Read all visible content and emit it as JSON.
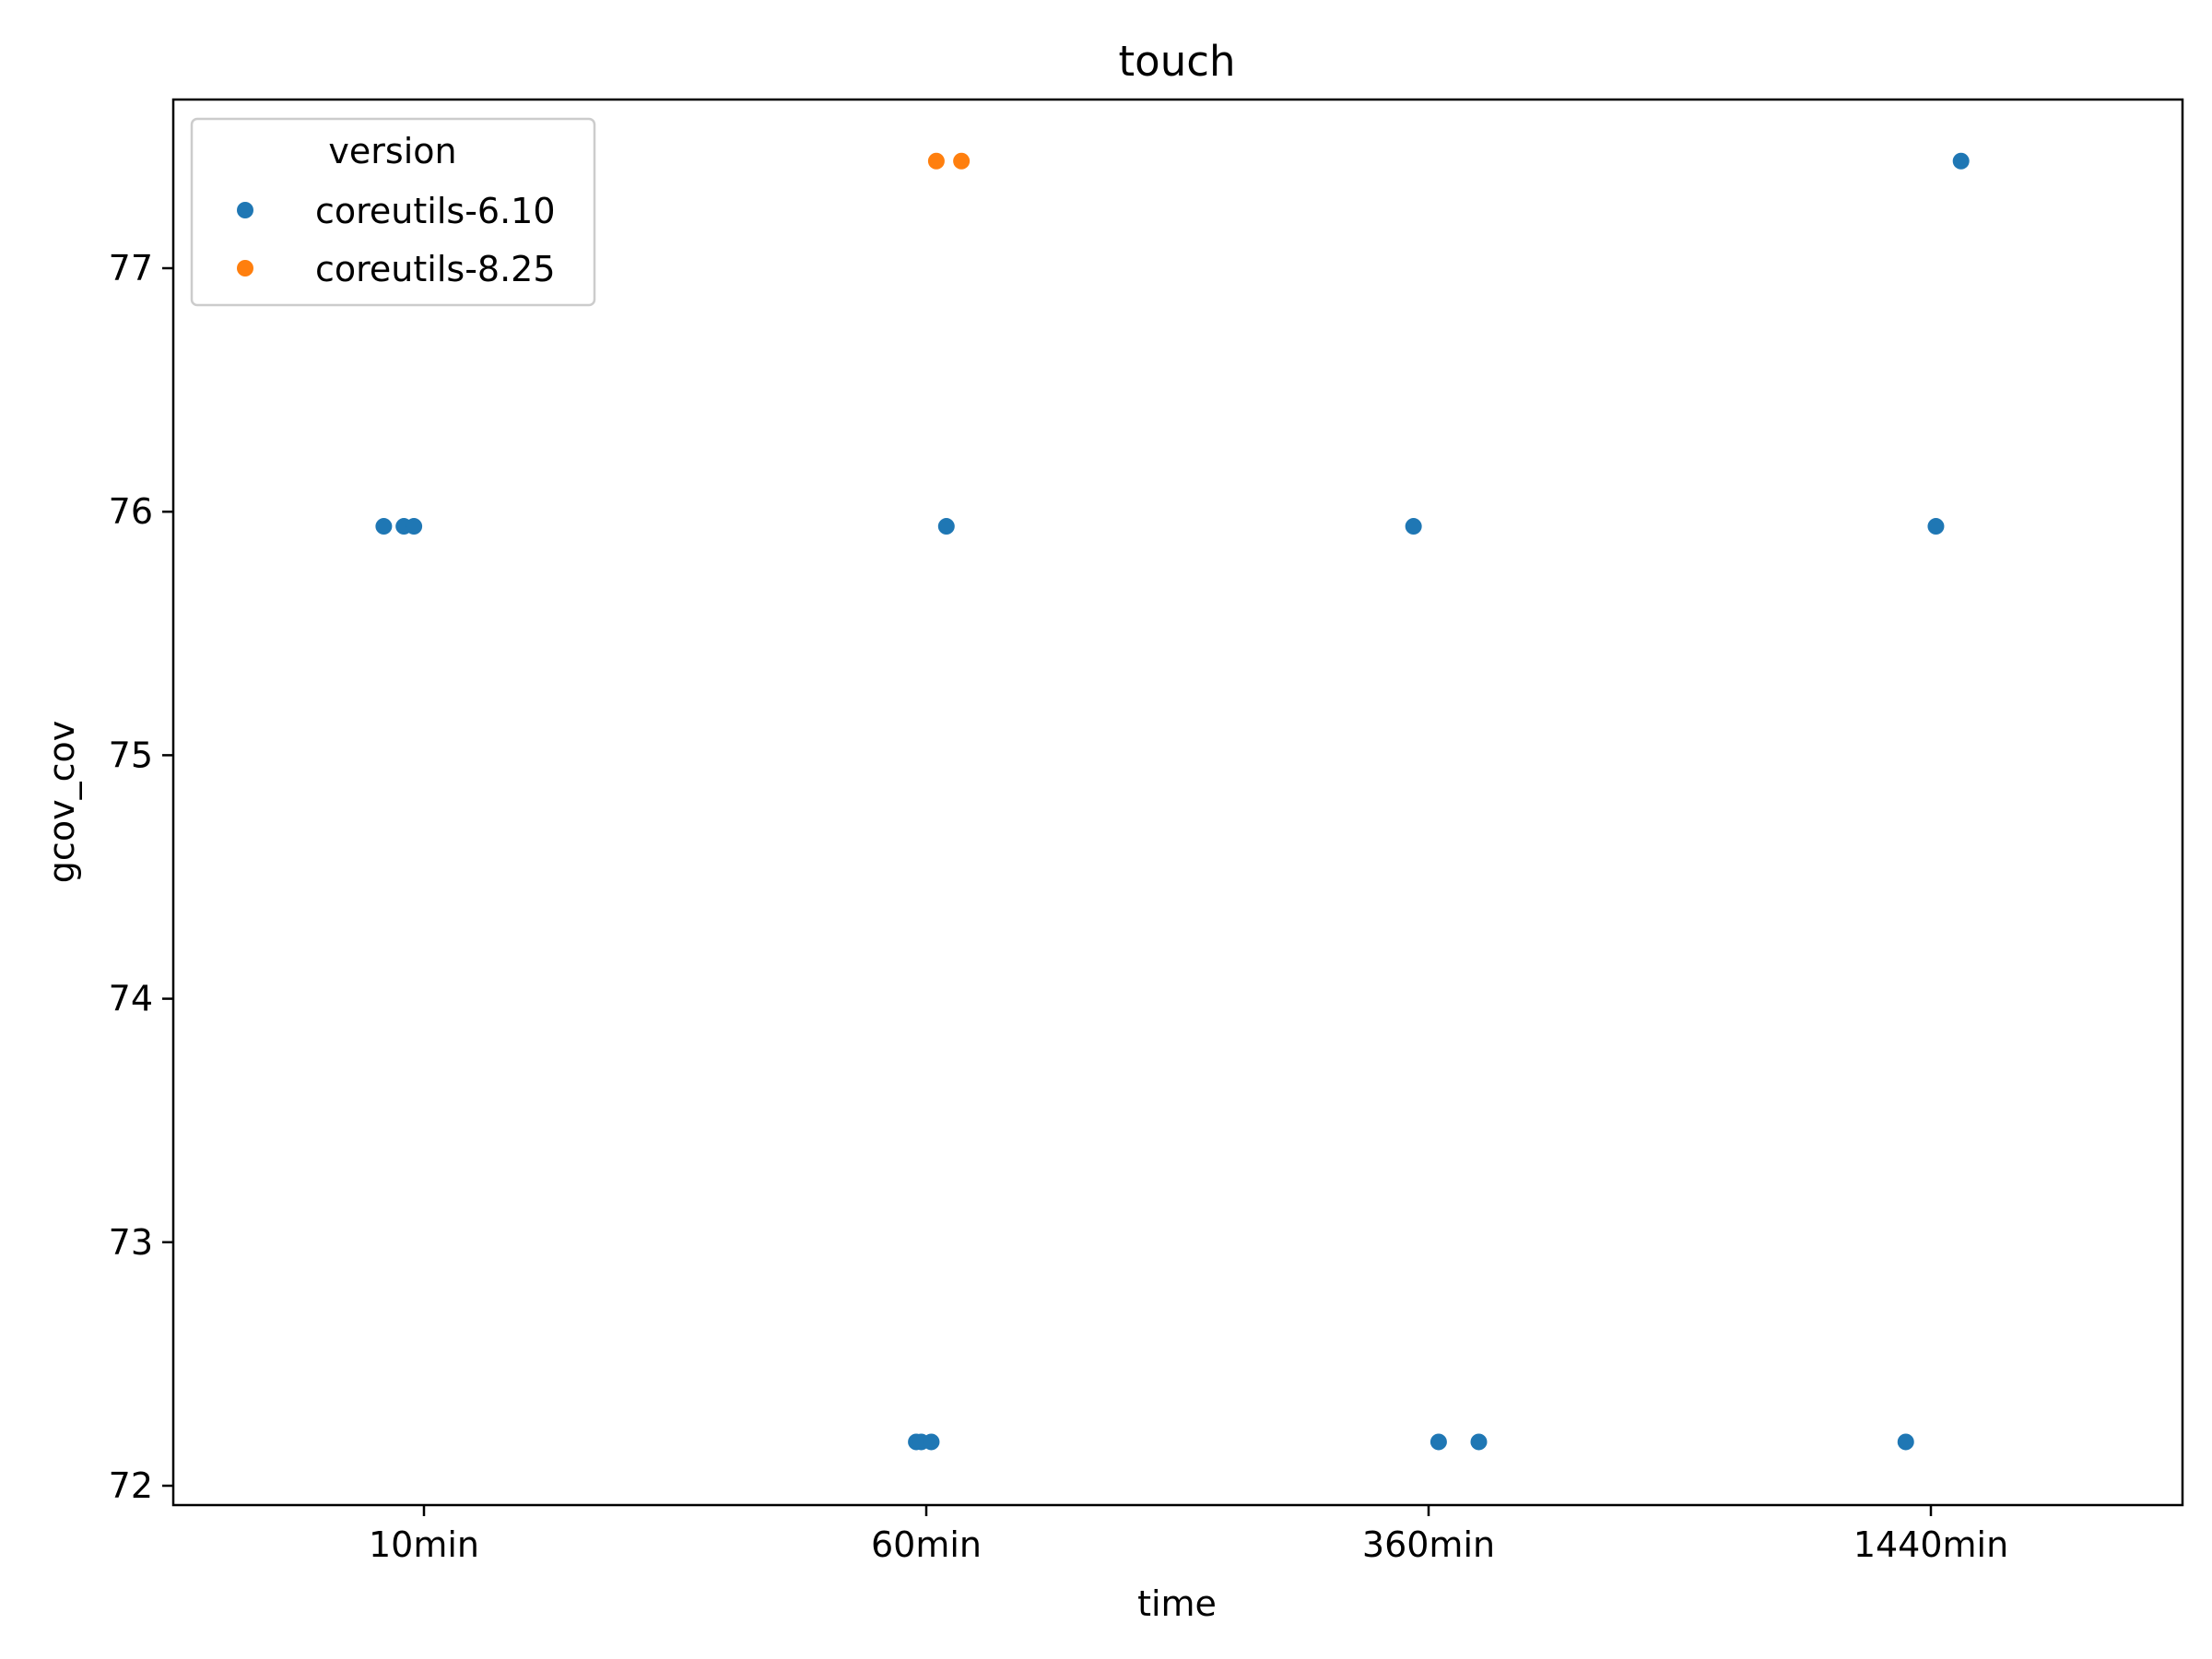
{
  "chart_data": {
    "type": "scatter",
    "title": "touch",
    "xlabel": "time",
    "ylabel": "gcov_cov",
    "categories": [
      "10min",
      "60min",
      "360min",
      "1440min"
    ],
    "y_ticks": [
      72,
      73,
      74,
      75,
      76,
      77
    ],
    "ylim": [
      71.92,
      77.69
    ],
    "grid": false,
    "legend": {
      "title": "version",
      "position": "top-left"
    },
    "series": [
      {
        "name": "coreutils-6.10",
        "color": "#1f77b4",
        "points": [
          {
            "category": "10min",
            "jitter": -0.08,
            "y": 75.94
          },
          {
            "category": "10min",
            "jitter": -0.04,
            "y": 75.94
          },
          {
            "category": "10min",
            "jitter": -0.02,
            "y": 75.94
          },
          {
            "category": "60min",
            "jitter": -0.02,
            "y": 72.18
          },
          {
            "category": "60min",
            "jitter": -0.01,
            "y": 72.18
          },
          {
            "category": "60min",
            "jitter": 0.01,
            "y": 72.18
          },
          {
            "category": "60min",
            "jitter": 0.04,
            "y": 75.94
          },
          {
            "category": "360min",
            "jitter": -0.03,
            "y": 75.94
          },
          {
            "category": "360min",
            "jitter": 0.02,
            "y": 72.18
          },
          {
            "category": "360min",
            "jitter": 0.1,
            "y": 72.18
          },
          {
            "category": "1440min",
            "jitter": -0.05,
            "y": 72.18
          },
          {
            "category": "1440min",
            "jitter": 0.01,
            "y": 75.94
          },
          {
            "category": "1440min",
            "jitter": 0.06,
            "y": 77.44
          }
        ]
      },
      {
        "name": "coreutils-8.25",
        "color": "#ff7f0e",
        "points": [
          {
            "category": "60min",
            "jitter": 0.02,
            "y": 77.44
          },
          {
            "category": "60min",
            "jitter": 0.07,
            "y": 77.44
          }
        ]
      }
    ]
  }
}
